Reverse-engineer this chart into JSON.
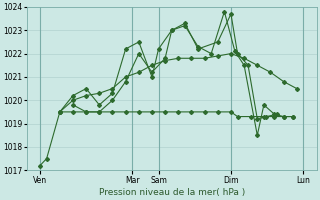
{
  "title": "",
  "xlabel": "Pression niveau de la mer( hPa )",
  "ylabel": "",
  "bg_color": "#cce8e4",
  "grid_color": "#aaccca",
  "line_color": "#2d6a2d",
  "ylim": [
    1017,
    1024
  ],
  "yticks": [
    1017,
    1018,
    1019,
    1020,
    1021,
    1022,
    1023,
    1024
  ],
  "xlim": [
    0,
    22
  ],
  "xtick_labels": [
    "Ven",
    "Mar",
    "Sam",
    "Dim",
    "Lun"
  ],
  "xtick_positions": [
    1,
    8,
    10,
    15.5,
    21
  ],
  "vline_positions": [
    1,
    8,
    10,
    15.5,
    21
  ],
  "series": [
    {
      "x": [
        1.0,
        1.5,
        2.5,
        3.5,
        4.5,
        5.5,
        6.5,
        7.5,
        8.5,
        9.5,
        10.5,
        11.5,
        12.5,
        13.5,
        14.5,
        15.5,
        16.0,
        17.0,
        18.0,
        18.8,
        19.5,
        20.2
      ],
      "y": [
        1017.2,
        1017.5,
        1019.5,
        1019.5,
        1019.5,
        1019.5,
        1019.5,
        1019.5,
        1019.5,
        1019.5,
        1019.5,
        1019.5,
        1019.5,
        1019.5,
        1019.5,
        1019.5,
        1019.3,
        1019.3,
        1019.3,
        1019.3,
        1019.3,
        1019.3
      ],
      "marker": "D",
      "markersize": 2.0,
      "linewidth": 0.8
    },
    {
      "x": [
        2.5,
        3.5,
        4.5,
        5.5,
        6.5,
        7.5,
        8.5,
        9.5,
        10.5,
        11.5,
        12.5,
        13.5,
        14.5,
        15.5,
        16.5,
        17.5,
        18.5,
        19.5,
        20.5
      ],
      "y": [
        1019.5,
        1020.0,
        1020.2,
        1020.3,
        1020.5,
        1021.0,
        1021.2,
        1021.5,
        1021.7,
        1021.8,
        1021.8,
        1021.8,
        1021.9,
        1022.0,
        1021.8,
        1021.5,
        1021.2,
        1020.8,
        1020.5
      ],
      "marker": "D",
      "markersize": 2.0,
      "linewidth": 0.8
    },
    {
      "x": [
        2.5,
        3.5,
        4.5,
        5.5,
        6.5,
        7.5,
        8.5,
        9.5,
        10.0,
        11.0,
        12.0,
        13.0,
        14.5,
        15.5,
        16.0,
        16.8,
        17.5,
        18.2,
        19.0
      ],
      "y": [
        1019.5,
        1020.2,
        1020.5,
        1019.8,
        1020.3,
        1022.2,
        1022.5,
        1021.0,
        1022.2,
        1023.0,
        1023.3,
        1022.2,
        1022.5,
        1023.7,
        1022.0,
        1021.5,
        1019.2,
        1019.3,
        1019.4
      ],
      "marker": "D",
      "markersize": 2.0,
      "linewidth": 0.8
    },
    {
      "x": [
        3.5,
        4.5,
        5.5,
        6.5,
        7.5,
        8.5,
        9.5,
        10.5,
        11.0,
        12.0,
        13.0,
        14.0,
        15.0,
        15.8,
        16.5,
        17.5,
        18.0,
        18.8,
        19.5,
        20.2
      ],
      "y": [
        1019.8,
        1019.5,
        1019.5,
        1020.0,
        1020.8,
        1022.0,
        1021.2,
        1021.8,
        1023.0,
        1023.2,
        1022.3,
        1022.0,
        1023.8,
        1022.1,
        1021.5,
        1018.5,
        1019.8,
        1019.4,
        1019.3,
        1019.3
      ],
      "marker": "D",
      "markersize": 2.0,
      "linewidth": 0.8
    }
  ]
}
